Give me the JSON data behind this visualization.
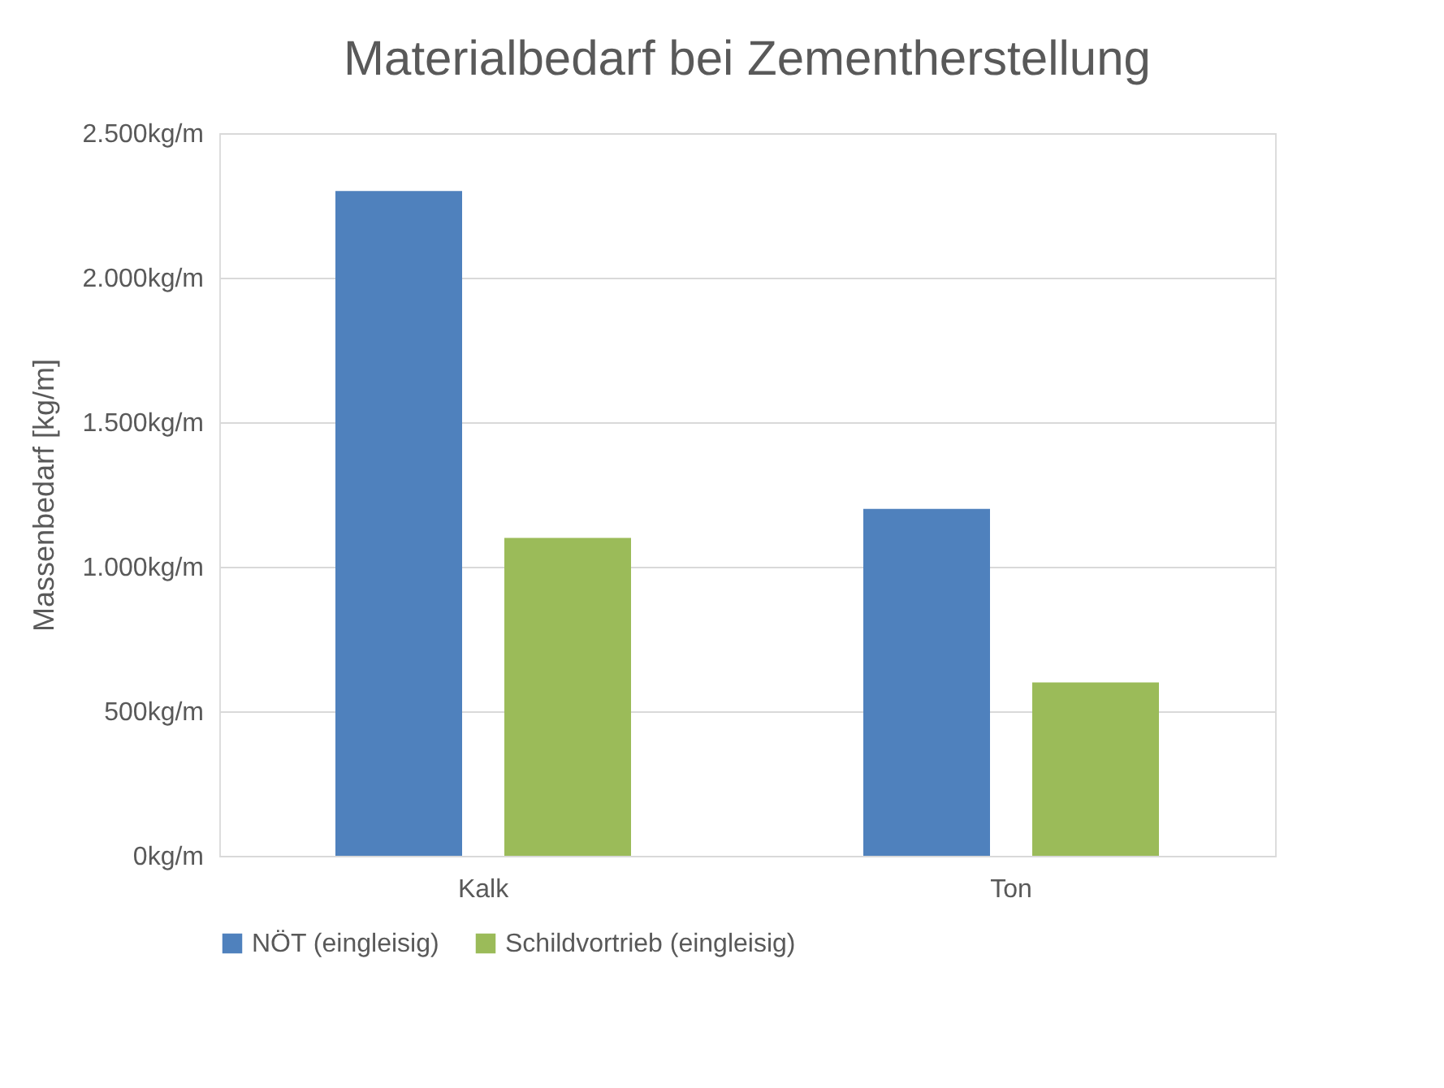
{
  "chart_data": {
    "type": "bar",
    "title": "Materialbedarf bei Zementherstellung",
    "ylabel": "Massenbedarf [kg/m]",
    "categories": [
      "Kalk",
      "Ton"
    ],
    "series": [
      {
        "name": "NÖT (eingleisig)",
        "color": "#4f81bd",
        "values": [
          2300,
          1200
        ]
      },
      {
        "name": "Schildvortrieb (eingleisig)",
        "color": "#9bbb59",
        "values": [
          1100,
          600
        ]
      }
    ],
    "ylim": [
      0,
      2500
    ],
    "yticks": [
      {
        "value": 0,
        "label": "0kg/m"
      },
      {
        "value": 500,
        "label": "500kg/m"
      },
      {
        "value": 1000,
        "label": "1.000kg/m"
      },
      {
        "value": 1500,
        "label": "1.500kg/m"
      },
      {
        "value": 2000,
        "label": "2.000kg/m"
      },
      {
        "value": 2500,
        "label": "2.500kg/m"
      }
    ],
    "grid": "y",
    "legend": "bottom"
  }
}
